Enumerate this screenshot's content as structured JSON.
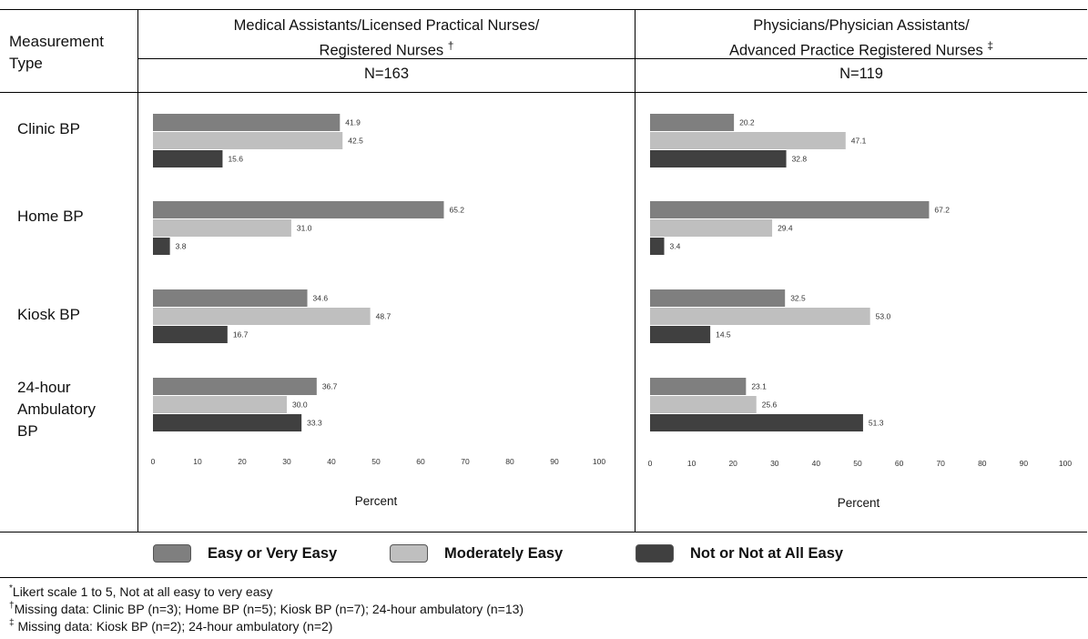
{
  "header": {
    "row_label": "Measurement Type",
    "col1_line1": "Medical Assistants/Licensed Practical Nurses/",
    "col1_line2": "Registered Nurses",
    "col1_mark": "†",
    "col1_n": "N=163",
    "col2_line1": "Physicians/Physician Assistants/",
    "col2_line2": "Advanced Practice Registered Nurses",
    "col2_mark": "‡",
    "col2_n": "N=119"
  },
  "rows": [
    {
      "label_lines": [
        "Clinic BP"
      ]
    },
    {
      "label_lines": [
        "Home BP"
      ]
    },
    {
      "label_lines": [
        "Kiosk BP"
      ]
    },
    {
      "label_lines": [
        "24-hour",
        "Ambulatory",
        "BP"
      ]
    }
  ],
  "legend": [
    {
      "label": "Easy or Very Easy",
      "color": "#7f7f7f"
    },
    {
      "label": "Moderately Easy",
      "color": "#bfbfbf"
    },
    {
      "label": "Not or Not at All Easy",
      "color": "#404040"
    }
  ],
  "footnotes": [
    {
      "mark": "*",
      "text": "Likert scale 1 to 5, Not at all easy to very easy"
    },
    {
      "mark": "†",
      "text": "Missing data: Clinic BP (n=3); Home BP (n=5); Kiosk BP (n=7); 24-hour ambulatory (n=13)"
    },
    {
      "mark": "‡",
      "text": " Missing data: Kiosk BP (n=2); 24-hour ambulatory (n=2)"
    }
  ],
  "chart_data": [
    {
      "type": "bar",
      "orientation": "horizontal",
      "categories": [
        "Clinic BP",
        "Home BP",
        "Kiosk BP",
        "24-hour Ambulatory BP"
      ],
      "series": [
        {
          "name": "Easy or Very Easy",
          "values": [
            41.9,
            65.2,
            34.6,
            36.7
          ],
          "labels": [
            "41.9",
            "65.2",
            "34.6",
            "36.7"
          ]
        },
        {
          "name": "Moderately Easy",
          "values": [
            42.5,
            31.0,
            48.7,
            30.0
          ],
          "labels": [
            "42.5",
            "31.0",
            "48.7",
            "30.0"
          ]
        },
        {
          "name": "Not or Not at All Easy",
          "values": [
            15.6,
            3.8,
            16.7,
            33.3
          ],
          "labels": [
            "15.6",
            "3.8",
            "16.7",
            "33.3"
          ]
        }
      ],
      "xlabel": "Percent",
      "xlim": [
        0,
        100
      ],
      "xticks": [
        0,
        10,
        20,
        30,
        40,
        50,
        60,
        70,
        80,
        90,
        100
      ],
      "grid": false
    },
    {
      "type": "bar",
      "orientation": "horizontal",
      "categories": [
        "Clinic BP",
        "Home BP",
        "Kiosk BP",
        "24-hour Ambulatory BP"
      ],
      "series": [
        {
          "name": "Easy or Very Easy",
          "values": [
            20.2,
            67.2,
            32.5,
            23.1
          ],
          "labels": [
            "20.2",
            "67.2",
            "32.5",
            "23.1"
          ]
        },
        {
          "name": "Moderately Easy",
          "values": [
            47.1,
            29.4,
            53.0,
            25.6
          ],
          "labels": [
            "47.1",
            "29.4",
            "53.0",
            "25.6"
          ]
        },
        {
          "name": "Not or Not at All Easy",
          "values": [
            32.8,
            3.4,
            14.5,
            51.3
          ],
          "labels": [
            "32.8",
            "3.4",
            "14.5",
            "51.3"
          ]
        }
      ],
      "xlabel": "Percent",
      "xlim": [
        0,
        100
      ],
      "xticks": [
        0,
        10,
        20,
        30,
        40,
        50,
        60,
        70,
        80,
        90,
        100
      ],
      "grid": false
    }
  ]
}
